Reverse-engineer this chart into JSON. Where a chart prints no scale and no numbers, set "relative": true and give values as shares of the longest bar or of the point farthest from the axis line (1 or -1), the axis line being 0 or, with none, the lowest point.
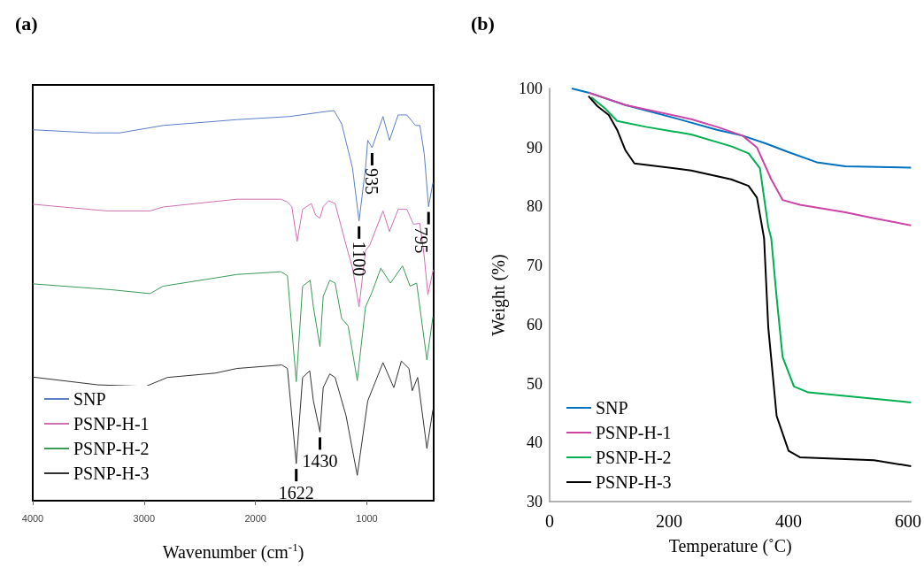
{
  "chart_data": [
    {
      "type": "line",
      "title": "(a)",
      "xlabel": "Wavenumber (cm$^{-1}$)",
      "relative": true,
      "xlim": [
        4000,
        400
      ],
      "xticks": [
        4000,
        3000,
        2000,
        1000
      ],
      "legend": "bottom left",
      "annotations": [
        {
          "text": "935",
          "x": 953,
          "y": 0.905
        },
        {
          "text": "1100",
          "x": 1070,
          "y": 0.717
        },
        {
          "text": "795",
          "x": 446,
          "y": 0.754
        },
        {
          "text": "1622",
          "x": 1634,
          "y": 0.095
        },
        {
          "text": "1430",
          "x": 1421,
          "y": 0.176
        }
      ],
      "series": [
        {
          "name": "SNP",
          "color": "#5b7fc8",
          "x": [
            4000,
            3454,
            3220,
            2830,
            2167,
            1694,
            1363,
            1294,
            1226,
            1129,
            1070,
            1012,
            992,
            953,
            855,
            797,
            719,
            641,
            563,
            524,
            485,
            446,
            407
          ],
          "values": [
            0.951,
            0.943,
            0.943,
            0.962,
            0.977,
            0.985,
            0.998,
            1.0,
            0.966,
            0.853,
            0.717,
            0.853,
            0.924,
            0.905,
            0.985,
            0.924,
            0.989,
            0.989,
            0.962,
            0.962,
            0.89,
            0.754,
            0.815
          ]
        },
        {
          "name": "PSNP-H-1",
          "color": "#d070b0",
          "x": [
            4000,
            3337,
            2947,
            2830,
            2167,
            1772,
            1713,
            1674,
            1626,
            1577,
            1499,
            1460,
            1421,
            1392,
            1343,
            1285,
            1187,
            1129,
            1070,
            1012,
            973,
            855,
            797,
            719,
            641,
            582,
            524,
            485,
            452,
            404
          ],
          "values": [
            0.76,
            0.743,
            0.743,
            0.753,
            0.773,
            0.773,
            0.766,
            0.754,
            0.665,
            0.747,
            0.762,
            0.732,
            0.724,
            0.754,
            0.769,
            0.762,
            0.656,
            0.596,
            0.497,
            0.641,
            0.656,
            0.743,
            0.69,
            0.747,
            0.747,
            0.709,
            0.711,
            0.626,
            0.528,
            0.592
          ]
        },
        {
          "name": "PSNP-H-2",
          "color": "#3a9a5a",
          "x": [
            4000,
            3298,
            2947,
            2830,
            2363,
            2167,
            1772,
            1713,
            1634,
            1577,
            1509,
            1480,
            1421,
            1392,
            1333,
            1285,
            1226,
            1168,
            1086,
            1012,
            953,
            875,
            788,
            680,
            612,
            553,
            461,
            407
          ],
          "values": [
            0.556,
            0.541,
            0.531,
            0.55,
            0.571,
            0.58,
            0.587,
            0.577,
            0.305,
            0.55,
            0.565,
            0.497,
            0.395,
            0.524,
            0.565,
            0.558,
            0.467,
            0.448,
            0.308,
            0.497,
            0.535,
            0.596,
            0.558,
            0.602,
            0.55,
            0.558,
            0.361,
            0.471
          ]
        },
        {
          "name": "PSNP-H-3",
          "color": "#333333",
          "x": [
            4000,
            3415,
            2986,
            2791,
            2363,
            2167,
            1763,
            1713,
            1634,
            1577,
            1513,
            1480,
            1421,
            1392,
            1333,
            1285,
            1187,
            1086,
            992,
            855,
            758,
            690,
            622,
            592,
            544,
            461,
            407
          ],
          "values": [
            0.317,
            0.297,
            0.293,
            0.316,
            0.327,
            0.339,
            0.348,
            0.339,
            0.095,
            0.316,
            0.333,
            0.256,
            0.176,
            0.29,
            0.325,
            0.316,
            0.218,
            0.065,
            0.256,
            0.354,
            0.29,
            0.358,
            0.339,
            0.282,
            0.316,
            0.134,
            0.233
          ]
        }
      ]
    },
    {
      "type": "line",
      "title": "(b)",
      "xlabel": "Temperature (˚C)",
      "ylabel": "Weight (%)",
      "xlim": [
        0,
        605
      ],
      "xticks": [
        0,
        200,
        400,
        600
      ],
      "ylim": [
        30,
        100
      ],
      "yticks": [
        30,
        40,
        50,
        60,
        70,
        80,
        90,
        100
      ],
      "legend": "bottom left",
      "series": [
        {
          "name": "SNP",
          "color": "#0070c0",
          "x": [
            37,
            65,
            127,
            209,
            280,
            323,
            361,
            400,
            447,
            495,
            605
          ],
          "values": [
            100,
            99.3,
            97.2,
            95.0,
            93.0,
            92.0,
            90.7,
            89.2,
            87.5,
            86.8,
            86.6
          ]
        },
        {
          "name": "PSNP-H-1",
          "color": "#cc44a6",
          "x": [
            65,
            127,
            237,
            280,
            323,
            347,
            371,
            390,
            419,
            495,
            543,
            605
          ],
          "values": [
            99.3,
            97.2,
            94.8,
            93.5,
            92.0,
            90.0,
            84.6,
            81.1,
            80.3,
            79.0,
            78.0,
            76.8
          ]
        },
        {
          "name": "PSNP-H-2",
          "color": "#00b050",
          "x": [
            70,
            94,
            113,
            161,
            237,
            304,
            333,
            352,
            366,
            371,
            380,
            390,
            409,
            433,
            605
          ],
          "values": [
            98.5,
            96.5,
            94.5,
            93.5,
            92.2,
            90.2,
            89.0,
            86.5,
            76.5,
            74.6,
            64.6,
            54.5,
            49.5,
            48.5,
            46.8
          ]
        },
        {
          "name": "PSNP-H-3",
          "color": "#000000",
          "x": [
            65,
            80,
            99,
            113,
            127,
            142,
            237,
            304,
            333,
            347,
            354,
            359,
            366,
            380,
            400,
            419,
            543,
            605
          ],
          "values": [
            98.7,
            97.0,
            95.5,
            93.0,
            89.5,
            87.3,
            86.1,
            84.6,
            83.5,
            81.5,
            77.5,
            74.6,
            59.5,
            44.5,
            38.6,
            37.5,
            37.0,
            36.0
          ]
        }
      ]
    }
  ]
}
